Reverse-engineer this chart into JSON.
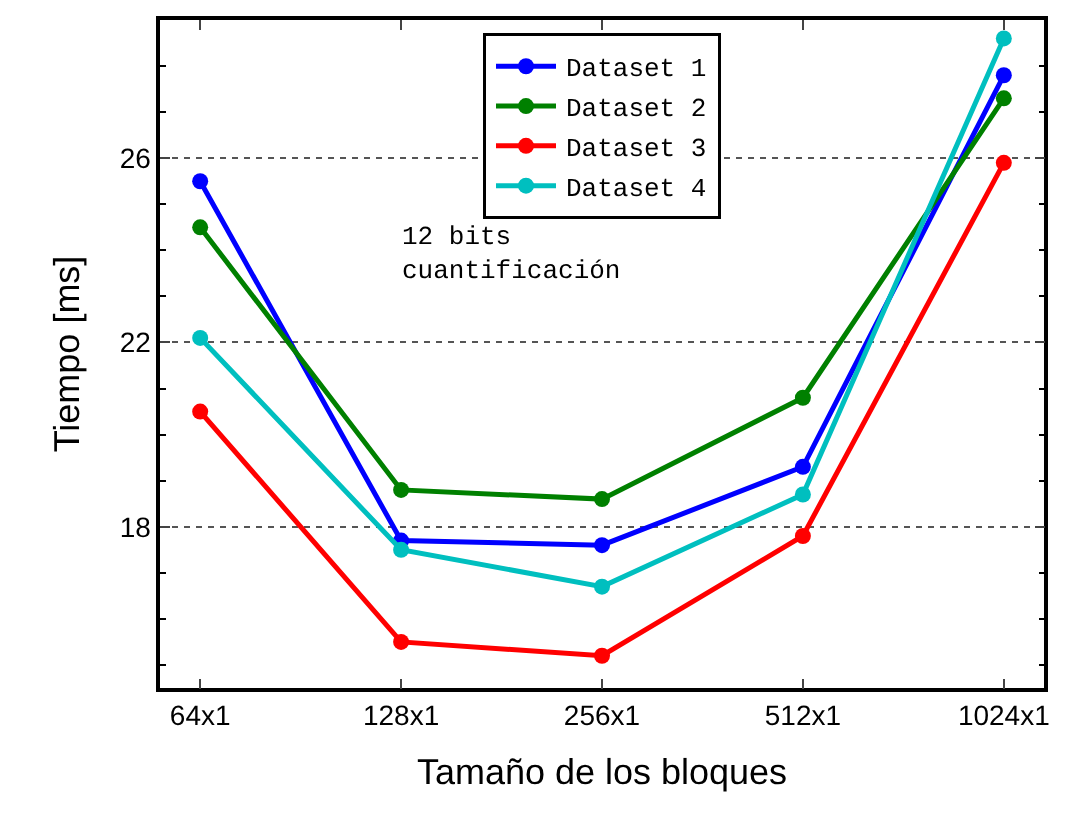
{
  "chart_data": {
    "type": "line",
    "xlabel": "Tamaño de los bloques",
    "ylabel": "Tiempo [ms]",
    "categories": [
      "64x1",
      "128x1",
      "256x1",
      "512x1",
      "1024x1"
    ],
    "series": [
      {
        "name": "Dataset 1",
        "color": "#0000ff",
        "values": [
          25.5,
          17.7,
          17.6,
          19.3,
          27.8
        ]
      },
      {
        "name": "Dataset 2",
        "color": "#008000",
        "values": [
          24.5,
          18.8,
          18.6,
          20.8,
          27.3
        ]
      },
      {
        "name": "Dataset 3",
        "color": "#ff0000",
        "values": [
          20.5,
          15.5,
          15.2,
          17.8,
          25.9
        ]
      },
      {
        "name": "Dataset 4",
        "color": "#00bfbf",
        "values": [
          22.1,
          17.5,
          16.7,
          18.7,
          28.6
        ]
      }
    ],
    "ylim": [
      14.5,
      29
    ],
    "yticks": [
      18,
      22,
      26
    ],
    "annotations": [
      "12 bits\ncuantificación"
    ],
    "grid": "y",
    "legend": "top",
    "marker": "circle",
    "line_style": "solid"
  }
}
